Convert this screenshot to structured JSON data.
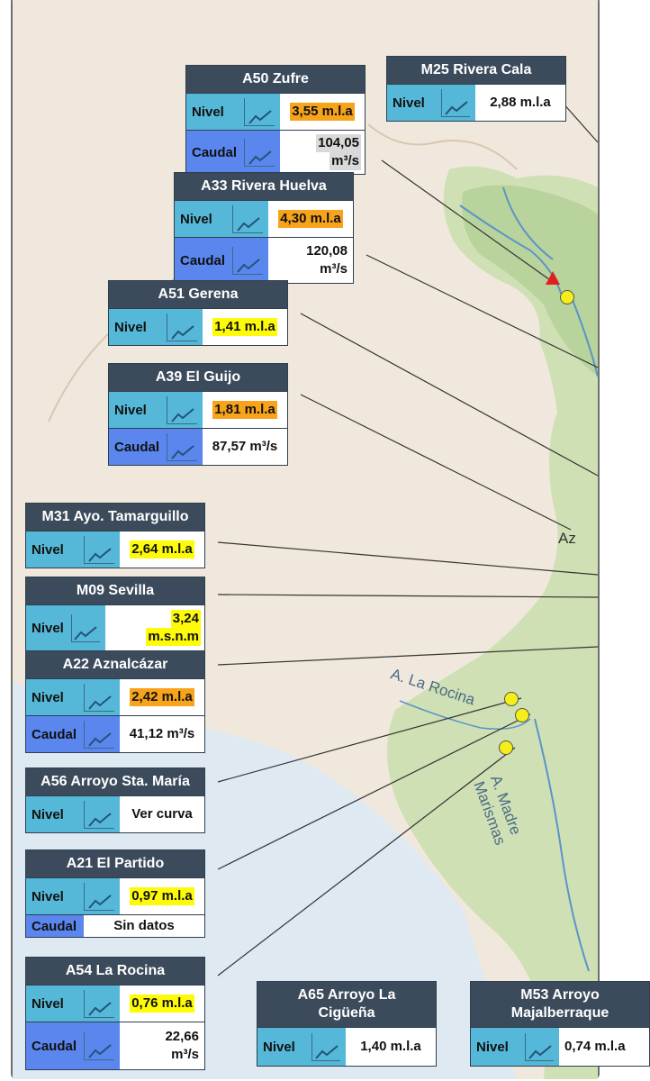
{
  "map": {
    "labels": {
      "la_rocina": "A. La Rocina",
      "madre_marismas": "A. Madre Marismas",
      "az": "Az"
    },
    "colors": {
      "nivel": "#55b8d8",
      "caudal": "#5a86ee",
      "orange": "#f7a31b",
      "yellow": "#fdfb08",
      "title": "#3c4b5c"
    }
  },
  "stations": {
    "a50": {
      "title": "A50 Zufre",
      "nivel_label": "Nivel",
      "nivel_value": "3,55 m.l.a",
      "caudal_label": "Caudal",
      "caudal_value_1": "104,05",
      "caudal_value_2": "m³/s"
    },
    "m25": {
      "title": "M25 Rivera Cala",
      "nivel_label": "Nivel",
      "nivel_value": "2,88 m.l.a"
    },
    "a33": {
      "title": "A33 Rivera Huelva",
      "nivel_label": "Nivel",
      "nivel_value": "4,30 m.l.a",
      "caudal_label": "Caudal",
      "caudal_value_1": "120,08",
      "caudal_value_2": "m³/s"
    },
    "a51": {
      "title": "A51 Gerena",
      "nivel_label": "Nivel",
      "nivel_value": "1,41 m.l.a"
    },
    "a39": {
      "title": "A39 El Guijo",
      "nivel_label": "Nivel",
      "nivel_value": "1,81 m.l.a",
      "caudal_label": "Caudal",
      "caudal_value": "87,57 m³/s"
    },
    "m31": {
      "title": "M31 Ayo. Tamarguillo",
      "nivel_label": "Nivel",
      "nivel_value": "2,64 m.l.a"
    },
    "m09": {
      "title": "M09 Sevilla",
      "nivel_label": "Nivel",
      "nivel_value_1": "3,24",
      "nivel_value_2": "m.s.n.m"
    },
    "a22": {
      "title": "A22 Aznalcázar",
      "nivel_label": "Nivel",
      "nivel_value": "2,42 m.l.a",
      "caudal_label": "Caudal",
      "caudal_value": "41,12 m³/s"
    },
    "a56": {
      "title": "A56 Arroyo Sta. María",
      "nivel_label": "Nivel",
      "nivel_value": "Ver curva"
    },
    "a21": {
      "title": "A21 El Partido",
      "nivel_label": "Nivel",
      "nivel_value": "0,97 m.l.a",
      "caudal_label": "Caudal",
      "caudal_value": "Sin datos"
    },
    "a54": {
      "title": "A54 La Rocina",
      "nivel_label": "Nivel",
      "nivel_value": "0,76 m.l.a",
      "caudal_label": "Caudal",
      "caudal_value_1": "22,66",
      "caudal_value_2": "m³/s"
    },
    "a65": {
      "title_1": "A65 Arroyo La",
      "title_2": "Cigüeña",
      "nivel_label": "Nivel",
      "nivel_value": "1,40 m.l.a"
    },
    "m53": {
      "title_1": "M53 Arroyo",
      "title_2": "Majalberraque",
      "nivel_label": "Nivel",
      "nivel_value": "0,74 m.l.a"
    }
  }
}
